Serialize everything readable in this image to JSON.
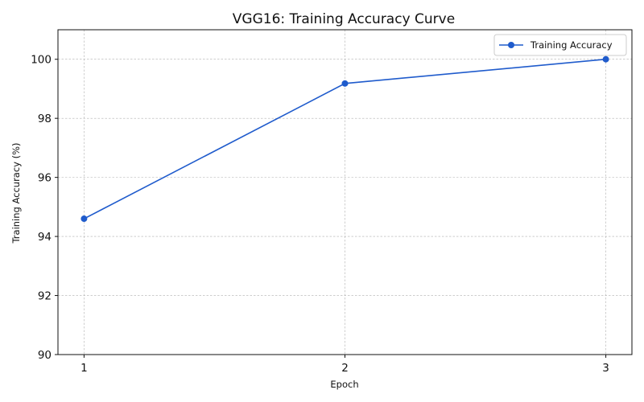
{
  "chart_data": {
    "type": "line",
    "title": "VGG16: Training Accuracy Curve",
    "xlabel": "Epoch",
    "ylabel": "Training Accuracy (%)",
    "x": [
      1,
      2,
      3
    ],
    "x_tick_labels": [
      "1",
      "2",
      "3"
    ],
    "y_ticks": [
      90,
      92,
      94,
      96,
      98,
      100
    ],
    "y_tick_labels": [
      "90",
      "92",
      "94",
      "96",
      "98",
      "100"
    ],
    "ylim": [
      90,
      101
    ],
    "grid": true,
    "legend_position": "top-right",
    "series": [
      {
        "name": "Training Accuracy",
        "values": [
          94.6,
          99.18,
          100.0
        ],
        "color": "#1f5bcc",
        "marker": "circle"
      }
    ]
  }
}
